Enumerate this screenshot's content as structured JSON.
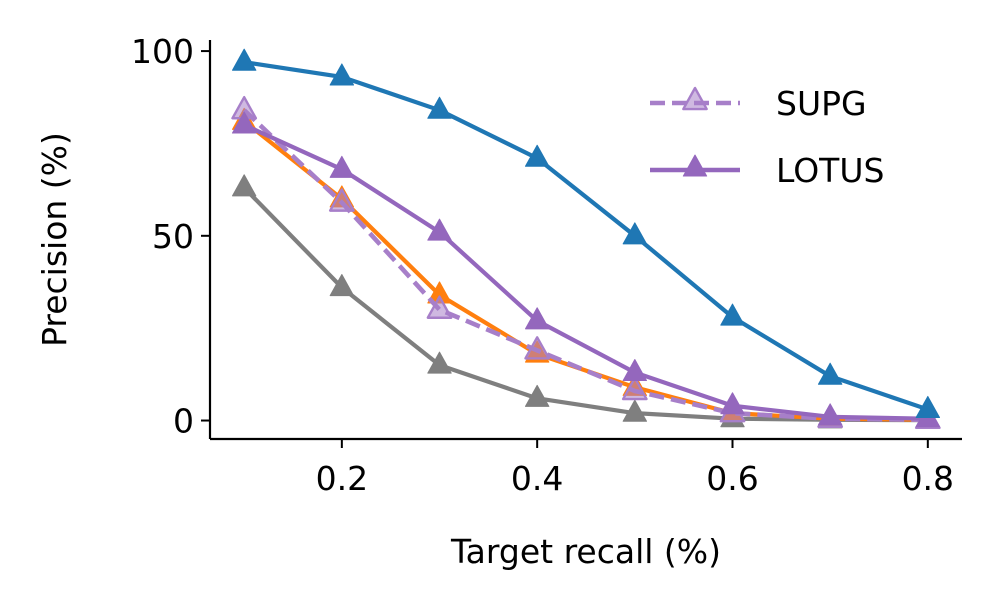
{
  "chart_data": {
    "type": "line",
    "title": "",
    "xlabel": "Target recall (%)",
    "ylabel": "Precision (%)",
    "xlim": [
      0.065,
      0.835
    ],
    "ylim": [
      -5,
      103
    ],
    "xticks": [
      0.2,
      0.4,
      0.6,
      0.8
    ],
    "xtick_labels": [
      "0.2",
      "0.4",
      "0.6",
      "0.8"
    ],
    "yticks": [
      0,
      50,
      100
    ],
    "ytick_labels": [
      "0",
      "50",
      "100"
    ],
    "grid": false,
    "legend_position": "top-right",
    "x": [
      0.1,
      0.2,
      0.3,
      0.4,
      0.5,
      0.6,
      0.7,
      0.8
    ],
    "series": [
      {
        "name": "",
        "color": "#7f7f7f",
        "style": "solid",
        "marker": "triangle-up",
        "values": [
          63,
          36,
          15,
          6,
          2,
          0.5,
          0.2,
          0.1
        ]
      },
      {
        "name": "",
        "color": "#ff7f0e",
        "style": "solid",
        "marker": "triangle-up",
        "values": [
          81,
          60,
          34,
          18,
          9,
          2,
          0.5,
          0.2
        ]
      },
      {
        "name": "SUPG",
        "color": "#a77fc9",
        "style": "dashed",
        "marker": "triangle-up-open",
        "values": [
          84,
          59,
          30,
          19,
          8,
          2,
          0.5,
          0.2
        ]
      },
      {
        "name": "LOTUS",
        "color": "#9467bd",
        "style": "solid",
        "marker": "triangle-up",
        "values": [
          80,
          68,
          51,
          27,
          13,
          4,
          1,
          0.5
        ]
      },
      {
        "name": "",
        "color": "#1f77b4",
        "style": "solid",
        "marker": "triangle-up",
        "values": [
          97,
          93,
          84,
          71,
          50,
          28,
          12,
          3
        ]
      }
    ]
  }
}
